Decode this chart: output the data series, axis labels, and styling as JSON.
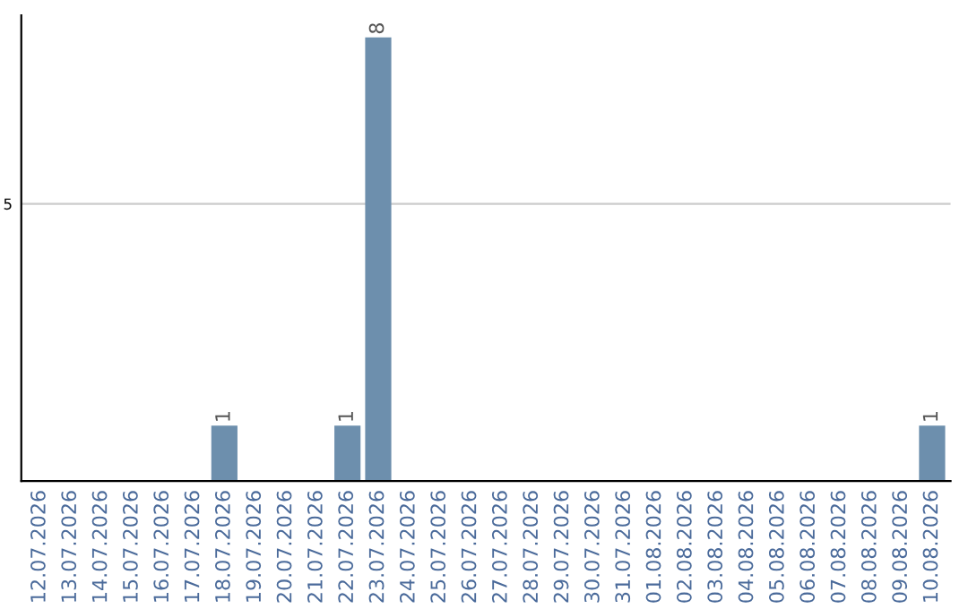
{
  "chart_data": {
    "type": "bar",
    "categories": [
      "12.07.2026",
      "13.07.2026",
      "14.07.2026",
      "15.07.2026",
      "16.07.2026",
      "17.07.2026",
      "18.07.2026",
      "19.07.2026",
      "20.07.2026",
      "21.07.2026",
      "22.07.2026",
      "23.07.2026",
      "24.07.2026",
      "25.07.2026",
      "26.07.2026",
      "27.07.2026",
      "28.07.2026",
      "29.07.2026",
      "30.07.2026",
      "31.07.2026",
      "01.08.2026",
      "02.08.2026",
      "03.08.2026",
      "04.08.2026",
      "05.08.2026",
      "06.08.2026",
      "07.08.2026",
      "08.08.2026",
      "09.08.2026",
      "10.08.2026"
    ],
    "values": [
      0,
      0,
      0,
      0,
      0,
      0,
      1,
      0,
      0,
      0,
      1,
      8,
      0,
      0,
      0,
      0,
      0,
      0,
      0,
      0,
      0,
      0,
      0,
      0,
      0,
      0,
      0,
      0,
      0,
      1
    ],
    "value_labels": [
      null,
      null,
      null,
      null,
      null,
      null,
      "1",
      null,
      null,
      null,
      "1",
      "8",
      null,
      null,
      null,
      null,
      null,
      null,
      null,
      null,
      null,
      null,
      null,
      null,
      null,
      null,
      null,
      null,
      null,
      "1"
    ],
    "color": "#6d8fad",
    "ylim": [
      0,
      8.4
    ],
    "yticks": [
      5
    ],
    "grid": "y"
  }
}
